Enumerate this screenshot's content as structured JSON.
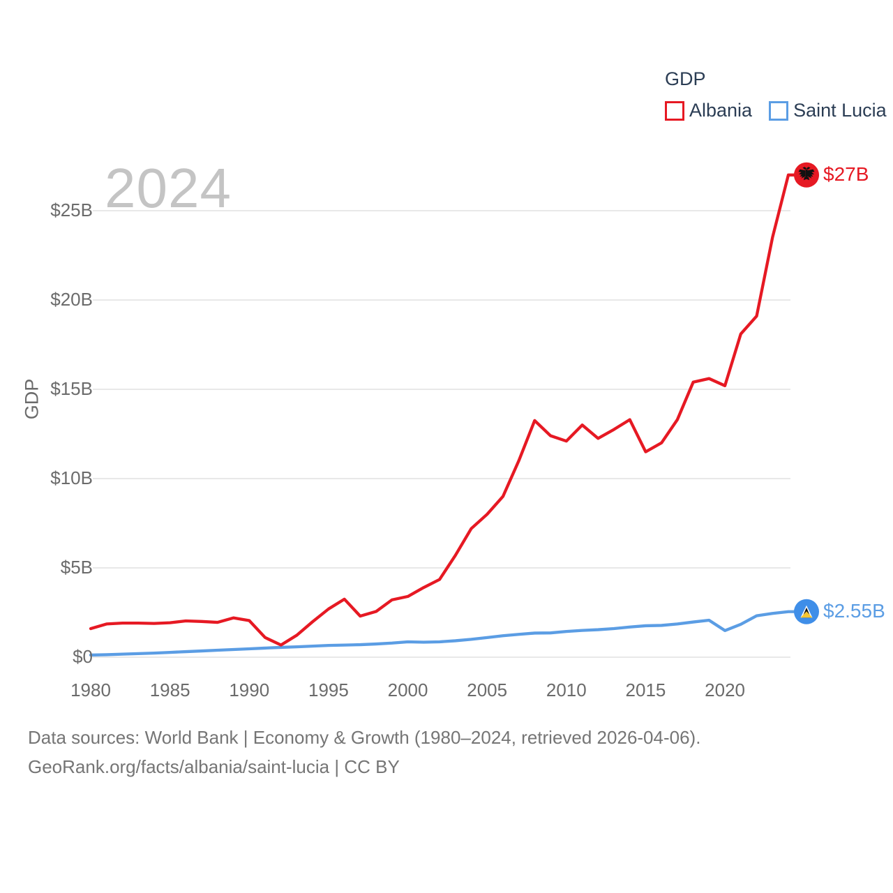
{
  "legend": {
    "title": "GDP",
    "items": [
      "Albania",
      "Saint Lucia"
    ]
  },
  "chart_data": {
    "type": "line",
    "title": "GDP",
    "ylabel": "GDP",
    "watermark": "2024",
    "x_start": 1980,
    "x_end": 2024,
    "x": [
      1980,
      1981,
      1982,
      1983,
      1984,
      1985,
      1986,
      1987,
      1988,
      1989,
      1990,
      1991,
      1992,
      1993,
      1994,
      1995,
      1996,
      1997,
      1998,
      1999,
      2000,
      2001,
      2002,
      2003,
      2004,
      2005,
      2006,
      2007,
      2008,
      2009,
      2010,
      2011,
      2012,
      2013,
      2014,
      2015,
      2016,
      2017,
      2018,
      2019,
      2020,
      2021,
      2022,
      2023,
      2024
    ],
    "x_ticks": [
      1980,
      1985,
      1990,
      1995,
      2000,
      2005,
      2010,
      2015,
      2020
    ],
    "y_ticks": [
      {
        "label": "$0",
        "value": 0
      },
      {
        "label": "$5B",
        "value": 5
      },
      {
        "label": "$10B",
        "value": 10
      },
      {
        "label": "$15B",
        "value": 15
      },
      {
        "label": "$20B",
        "value": 20
      },
      {
        "label": "$25B",
        "value": 25
      }
    ],
    "ylim": [
      0,
      27.5
    ],
    "grid": "horizontal",
    "legend_position": "top-right",
    "units": "USD billions",
    "series": [
      {
        "name": "Albania",
        "color": "#e61923",
        "marker_color": "#e61923",
        "end_label": "$27B",
        "flag_icon": "albania-double-headed-eagle",
        "values": [
          1.6,
          1.86,
          1.91,
          1.91,
          1.89,
          1.93,
          2.03,
          2.0,
          1.95,
          2.2,
          2.05,
          1.1,
          0.68,
          1.23,
          1.99,
          2.7,
          3.25,
          2.3,
          2.56,
          3.21,
          3.4,
          3.9,
          4.35,
          5.7,
          7.2,
          8.0,
          9.0,
          11.0,
          13.25,
          12.4,
          12.1,
          13.0,
          12.25,
          12.75,
          13.3,
          11.5,
          12.0,
          13.3,
          15.4,
          15.6,
          15.2,
          18.1,
          19.1,
          23.5,
          27.0
        ]
      },
      {
        "name": "Saint Lucia",
        "color": "#5b9de4",
        "marker_color": "#3f8ee8",
        "end_label": "$2.55B",
        "flag_icon": "saint-lucia-triangles",
        "values": [
          0.12,
          0.14,
          0.17,
          0.2,
          0.23,
          0.27,
          0.31,
          0.35,
          0.39,
          0.43,
          0.47,
          0.51,
          0.55,
          0.58,
          0.62,
          0.66,
          0.68,
          0.7,
          0.74,
          0.79,
          0.86,
          0.84,
          0.86,
          0.92,
          1.0,
          1.1,
          1.2,
          1.28,
          1.35,
          1.36,
          1.44,
          1.5,
          1.54,
          1.6,
          1.69,
          1.76,
          1.78,
          1.86,
          1.97,
          2.07,
          1.49,
          1.84,
          2.32,
          2.45,
          2.55
        ]
      }
    ]
  },
  "footer": {
    "line1": "Data sources: World Bank | Economy & Growth (1980–2024, retrieved 2026-04-06).",
    "line2": "GeoRank.org/facts/albania/saint-lucia | CC BY"
  },
  "colors": {
    "background": "#ffffff",
    "grid": "#e8e8e8",
    "axis_text": "#6b6b6b",
    "watermark": "#c4c4c4",
    "legend_text": "#2b3d54",
    "footer_text": "#757575"
  }
}
